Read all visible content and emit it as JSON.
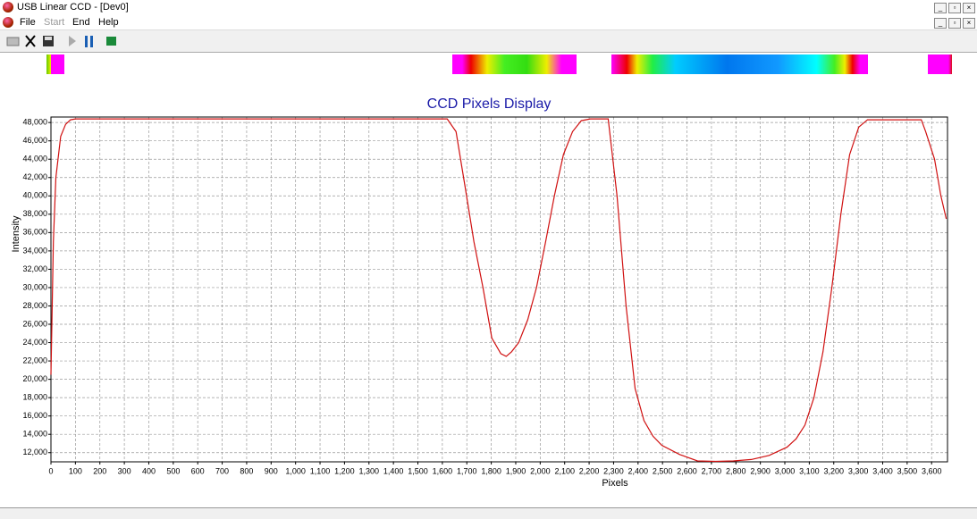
{
  "window": {
    "title": "USB Linear CCD - [Dev0]",
    "menu": [
      "File",
      "Start",
      "End",
      "Help"
    ]
  },
  "chart_data": {
    "type": "line",
    "title": "CCD Pixels Display",
    "xlabel": "Pixels",
    "ylabel": "Intensity",
    "xlim": [
      0,
      3665
    ],
    "ylim": [
      11000,
      48600
    ],
    "grid": true,
    "xticks": [
      0,
      100,
      200,
      300,
      400,
      500,
      600,
      700,
      800,
      900,
      {
        "value": 1000,
        "label": "1,000"
      },
      {
        "value": 1100,
        "label": "1,100"
      },
      {
        "value": 1200,
        "label": "1,200"
      },
      {
        "value": 1300,
        "label": "1,300"
      },
      {
        "value": 1400,
        "label": "1,400"
      },
      {
        "value": 1500,
        "label": "1,500"
      },
      {
        "value": 1600,
        "label": "1,600"
      },
      {
        "value": 1700,
        "label": "1,700"
      },
      {
        "value": 1800,
        "label": "1,800"
      },
      {
        "value": 1900,
        "label": "1,900"
      },
      {
        "value": 2000,
        "label": "2,000"
      },
      {
        "value": 2100,
        "label": "2,100"
      },
      {
        "value": 2200,
        "label": "2,200"
      },
      {
        "value": 2300,
        "label": "2,300"
      },
      {
        "value": 2400,
        "label": "2,400"
      },
      {
        "value": 2500,
        "label": "2,500"
      },
      {
        "value": 2600,
        "label": "2,600"
      },
      {
        "value": 2700,
        "label": "2,700"
      },
      {
        "value": 2800,
        "label": "2,800"
      },
      {
        "value": 2900,
        "label": "2,900"
      },
      {
        "value": 3000,
        "label": "3,000"
      },
      {
        "value": 3100,
        "label": "3,100"
      },
      {
        "value": 3200,
        "label": "3,200"
      },
      {
        "value": 3300,
        "label": "3,300"
      },
      {
        "value": 3400,
        "label": "3,400"
      },
      {
        "value": 3500,
        "label": "3,500"
      },
      {
        "value": 3600,
        "label": "3,600"
      }
    ],
    "yticks": [
      {
        "value": 12000,
        "label": "12,000"
      },
      {
        "value": 14000,
        "label": "14,000"
      },
      {
        "value": 16000,
        "label": "16,000"
      },
      {
        "value": 18000,
        "label": "18,000"
      },
      {
        "value": 20000,
        "label": "20,000"
      },
      {
        "value": 22000,
        "label": "22,000"
      },
      {
        "value": 24000,
        "label": "24,000"
      },
      {
        "value": 26000,
        "label": "26,000"
      },
      {
        "value": 28000,
        "label": "28,000"
      },
      {
        "value": 30000,
        "label": "30,000"
      },
      {
        "value": 32000,
        "label": "32,000"
      },
      {
        "value": 34000,
        "label": "34,000"
      },
      {
        "value": 36000,
        "label": "36,000"
      },
      {
        "value": 38000,
        "label": "38,000"
      },
      {
        "value": 40000,
        "label": "40,000"
      },
      {
        "value": 42000,
        "label": "42,000"
      },
      {
        "value": 44000,
        "label": "44,000"
      },
      {
        "value": 46000,
        "label": "46,000"
      },
      {
        "value": 48000,
        "label": "48,000"
      }
    ],
    "series": [
      {
        "color": "#d01010",
        "x": [
          0,
          10,
          20,
          40,
          60,
          80,
          100,
          600,
          1200,
          1620,
          1656,
          1693,
          1729,
          1766,
          1802,
          1839,
          1861,
          1883,
          1912,
          1949,
          1985,
          2022,
          2058,
          2095,
          2132,
          2168,
          2205,
          2278,
          2314,
          2351,
          2388,
          2424,
          2461,
          2497,
          2570,
          2643,
          2717,
          2790,
          2863,
          2936,
          3009,
          3046,
          3082,
          3119,
          3156,
          3192,
          3229,
          3265,
          3302,
          3338,
          3450,
          3558,
          3576,
          3612,
          3638,
          3660
        ],
        "values": [
          20500,
          35000,
          42000,
          46500,
          47800,
          48300,
          48400,
          48400,
          48400,
          48400,
          47000,
          41000,
          35000,
          30000,
          24500,
          22800,
          22500,
          23000,
          24000,
          26500,
          30000,
          35000,
          40000,
          44500,
          47000,
          48200,
          48400,
          48400,
          40000,
          28000,
          19000,
          15500,
          13800,
          12800,
          11800,
          11100,
          11050,
          11100,
          11250,
          11700,
          12600,
          13500,
          15000,
          18000,
          23000,
          30000,
          38000,
          44500,
          47500,
          48300,
          48300,
          48300,
          47000,
          44000,
          40000,
          37500
        ]
      }
    ]
  }
}
